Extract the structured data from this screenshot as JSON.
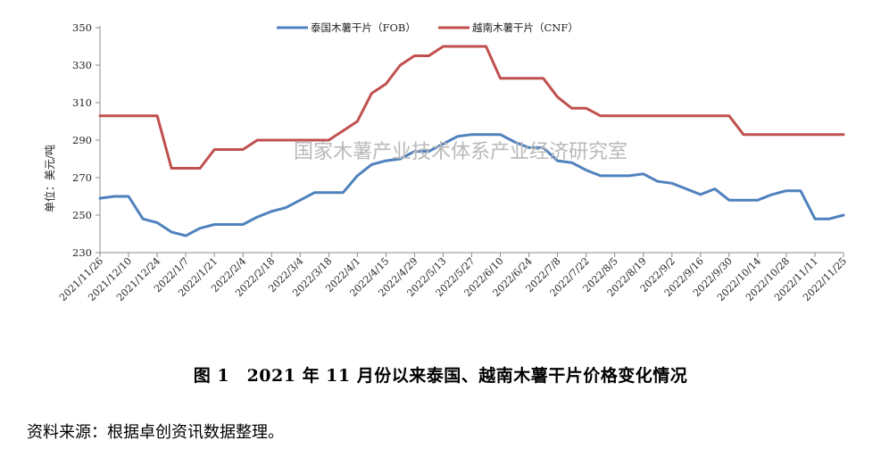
{
  "caption": "图 1　2021 年 11 月份以来泰国、越南木薯干片价格变化情况",
  "source": "资料来源：根据卓创资讯数据整理。",
  "watermark": "国家木薯产业技术体系产业经济研究室",
  "colors": {
    "thai": "#4f81bd",
    "vietnam": "#c0504d",
    "axis": "#8c8c8c"
  },
  "chart_data": {
    "type": "line",
    "title": "",
    "xlabel": "",
    "ylabel": "单位：美元/吨",
    "ylim": [
      230,
      350
    ],
    "yticks": [
      230,
      250,
      270,
      290,
      310,
      330,
      350
    ],
    "grid": false,
    "legend_position": "top",
    "x_tick_labels": [
      "2021/11/26",
      "2021/12/10",
      "2021/12/24",
      "2022/1/7",
      "2022/1/21",
      "2022/2/4",
      "2022/2/18",
      "2022/3/4",
      "2022/3/18",
      "2022/4/1",
      "2022/4/15",
      "2022/4/29",
      "2022/5/13",
      "2022/5/27",
      "2022/6/10",
      "2022/6/24",
      "2022/7/8",
      "2022/7/22",
      "2022/8/5",
      "2022/8/19",
      "2022/9/2",
      "2022/9/16",
      "2022/9/30",
      "2022/10/14",
      "2022/10/28",
      "2022/11/11",
      "2022/11/25"
    ],
    "x": [
      "2021/11/26",
      "2021/12/3",
      "2021/12/10",
      "2021/12/17",
      "2021/12/24",
      "2021/12/31",
      "2022/1/7",
      "2022/1/14",
      "2022/1/21",
      "2022/1/28",
      "2022/2/4",
      "2022/2/11",
      "2022/2/18",
      "2022/2/25",
      "2022/3/4",
      "2022/3/11",
      "2022/3/18",
      "2022/3/25",
      "2022/4/1",
      "2022/4/8",
      "2022/4/15",
      "2022/4/22",
      "2022/4/29",
      "2022/5/6",
      "2022/5/13",
      "2022/5/20",
      "2022/5/27",
      "2022/6/3",
      "2022/6/10",
      "2022/6/17",
      "2022/6/24",
      "2022/7/1",
      "2022/7/8",
      "2022/7/15",
      "2022/7/22",
      "2022/7/29",
      "2022/8/5",
      "2022/8/12",
      "2022/8/19",
      "2022/8/26",
      "2022/9/2",
      "2022/9/9",
      "2022/9/16",
      "2022/9/23",
      "2022/9/30",
      "2022/10/7",
      "2022/10/14",
      "2022/10/21",
      "2022/10/28",
      "2022/11/4",
      "2022/11/11",
      "2022/11/18",
      "2022/11/25"
    ],
    "series": [
      {
        "name": "泰国木薯干片（FOB）",
        "color": "#4f81bd",
        "values": [
          259,
          260,
          260,
          248,
          246,
          241,
          239,
          243,
          245,
          245,
          245,
          249,
          252,
          254,
          258,
          262,
          262,
          262,
          271,
          277,
          279,
          280,
          284,
          284,
          288,
          292,
          293,
          293,
          293,
          289,
          286,
          286,
          279,
          278,
          274,
          271,
          271,
          271,
          272,
          268,
          267,
          264,
          261,
          264,
          258,
          258,
          258,
          261,
          263,
          263,
          248,
          248,
          250
        ]
      },
      {
        "name": "越南木薯干片（CNF）",
        "color": "#c0504d",
        "values": [
          303,
          303,
          303,
          303,
          303,
          275,
          275,
          275,
          285,
          285,
          285,
          290,
          290,
          290,
          290,
          290,
          290,
          295,
          300,
          315,
          320,
          330,
          335,
          335,
          340,
          340,
          340,
          340,
          323,
          323,
          323,
          323,
          313,
          307,
          307,
          303,
          303,
          303,
          303,
          303,
          303,
          303,
          303,
          303,
          303,
          293,
          293,
          293,
          293,
          293,
          293,
          293,
          293
        ]
      }
    ]
  }
}
